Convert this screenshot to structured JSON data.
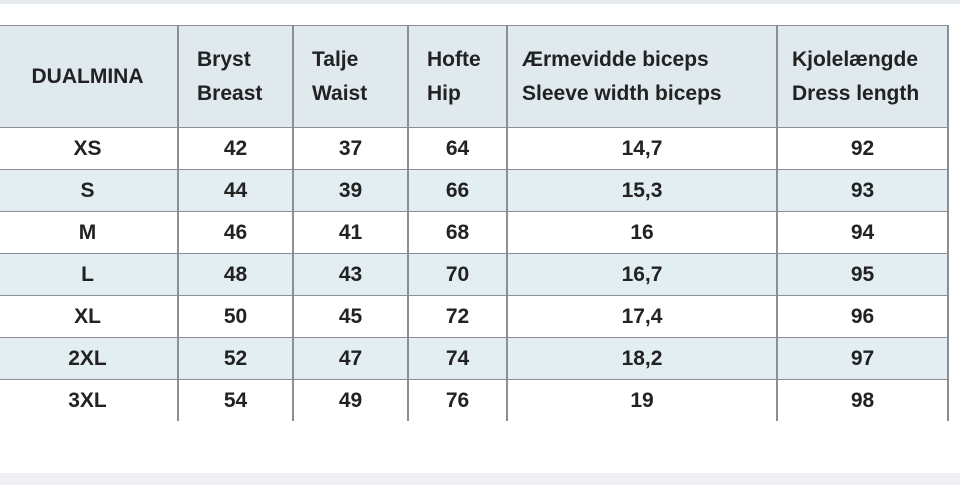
{
  "table": {
    "header": [
      [
        "DUALMINA"
      ],
      [
        "Bryst",
        "Breast"
      ],
      [
        "Talje",
        "Waist"
      ],
      [
        "Hofte",
        "Hip"
      ],
      [
        "Ærmevidde biceps",
        "Sleeve width biceps"
      ],
      [
        "Kjolelængde",
        "Dress length"
      ]
    ],
    "rows": [
      [
        "XS",
        "42",
        "37",
        "64",
        "14,7",
        "92"
      ],
      [
        "S",
        "44",
        "39",
        "66",
        "15,3",
        "93"
      ],
      [
        "M",
        "46",
        "41",
        "68",
        "16",
        "94"
      ],
      [
        "L",
        "48",
        "43",
        "70",
        "16,7",
        "95"
      ],
      [
        "XL",
        "50",
        "45",
        "72",
        "17,4",
        "96"
      ],
      [
        "2XL",
        "52",
        "47",
        "74",
        "18,2",
        "97"
      ],
      [
        "3XL",
        "54",
        "49",
        "76",
        "19",
        "98"
      ]
    ]
  }
}
